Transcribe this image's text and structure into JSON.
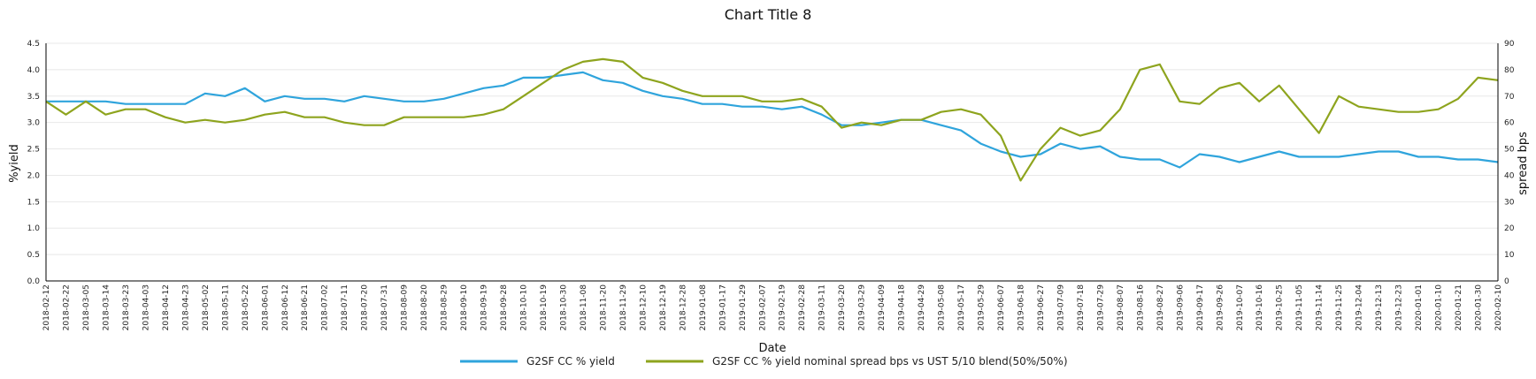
{
  "chart_data": {
    "type": "line",
    "title": "Chart Title 8",
    "xlabel": "Date",
    "ylabel_left": "%yield",
    "ylabel_right": "spread bps",
    "ylim_left": [
      0,
      4.5
    ],
    "ylim_right": [
      0,
      90
    ],
    "yticks_left": [
      "0.0",
      "0.5",
      "1.0",
      "1.5",
      "2.0",
      "2.5",
      "3.0",
      "3.5",
      "4.0",
      "4.5"
    ],
    "yticks_right": [
      "0",
      "10",
      "20",
      "30",
      "40",
      "50",
      "60",
      "70",
      "80",
      "90"
    ],
    "grid": "horizontal",
    "legend_position": "bottom",
    "x_tick_labels": [
      "2018-02-12",
      "2018-02-22",
      "2018-03-05",
      "2018-03-14",
      "2018-03-23",
      "2018-04-03",
      "2018-04-12",
      "2018-04-23",
      "2018-05-02",
      "2018-05-11",
      "2018-05-22",
      "2018-06-01",
      "2018-06-12",
      "2018-06-21",
      "2018-07-02",
      "2018-07-11",
      "2018-07-20",
      "2018-07-31",
      "2018-08-09",
      "2018-08-20",
      "2018-08-29",
      "2018-09-10",
      "2018-09-19",
      "2018-09-28",
      "2018-10-10",
      "2018-10-19",
      "2018-10-30",
      "2018-11-08",
      "2018-11-20",
      "2018-11-29",
      "2018-12-10",
      "2018-12-19",
      "2018-12-28",
      "2019-01-08",
      "2019-01-17",
      "2019-01-29",
      "2019-02-07",
      "2019-02-19",
      "2019-02-28",
      "2019-03-11",
      "2019-03-20",
      "2019-03-29",
      "2019-04-09",
      "2019-04-18",
      "2019-04-29",
      "2019-05-08",
      "2019-05-17",
      "2019-05-29",
      "2019-06-07",
      "2019-06-18",
      "2019-06-27",
      "2019-07-09",
      "2019-07-18",
      "2019-07-29",
      "2019-08-07",
      "2019-08-16",
      "2019-08-27",
      "2019-09-06",
      "2019-09-17",
      "2019-09-26",
      "2019-10-07",
      "2019-10-16",
      "2019-10-25",
      "2019-11-05",
      "2019-11-14",
      "2019-11-25",
      "2019-12-04",
      "2019-12-13",
      "2019-12-23",
      "2020-01-01",
      "2020-01-10",
      "2020-01-21",
      "2020-01-30",
      "2020-02-10"
    ],
    "series": [
      {
        "name": "G2SF CC % yield",
        "axis": "left",
        "color": "#2fa4dc",
        "values": [
          3.4,
          3.4,
          3.4,
          3.4,
          3.35,
          3.35,
          3.35,
          3.35,
          3.55,
          3.5,
          3.65,
          3.4,
          3.5,
          3.45,
          3.45,
          3.4,
          3.5,
          3.45,
          3.4,
          3.4,
          3.45,
          3.55,
          3.65,
          3.7,
          3.85,
          3.85,
          3.9,
          3.95,
          3.8,
          3.75,
          3.6,
          3.5,
          3.45,
          3.35,
          3.35,
          3.3,
          3.3,
          3.25,
          3.3,
          3.15,
          2.95,
          2.95,
          3.0,
          3.05,
          3.05,
          2.95,
          2.85,
          2.6,
          2.45,
          2.35,
          2.4,
          2.6,
          2.5,
          2.55,
          2.35,
          2.3,
          2.3,
          2.15,
          2.4,
          2.35,
          2.25,
          2.35,
          2.45,
          2.35,
          2.35,
          2.35,
          2.4,
          2.45,
          2.45,
          2.35,
          2.35,
          2.3,
          2.3,
          2.25
        ]
      },
      {
        "name": "G2SF CC % yield nominal spread bps vs UST 5/10 blend(50%/50%)",
        "axis": "right",
        "color": "#8ea41e",
        "values": [
          68,
          63,
          68,
          63,
          65,
          65,
          62,
          60,
          61,
          60,
          61,
          63,
          64,
          62,
          62,
          60,
          59,
          59,
          62,
          62,
          62,
          62,
          63,
          65,
          70,
          75,
          80,
          83,
          84,
          83,
          77,
          75,
          72,
          70,
          70,
          70,
          68,
          68,
          69,
          66,
          58,
          60,
          59,
          61,
          61,
          64,
          65,
          63,
          55,
          38,
          50,
          58,
          55,
          57,
          65,
          80,
          82,
          68,
          67,
          73,
          75,
          68,
          74,
          65,
          56,
          70,
          66,
          65,
          64,
          64,
          65,
          69,
          77,
          76
        ]
      }
    ]
  }
}
